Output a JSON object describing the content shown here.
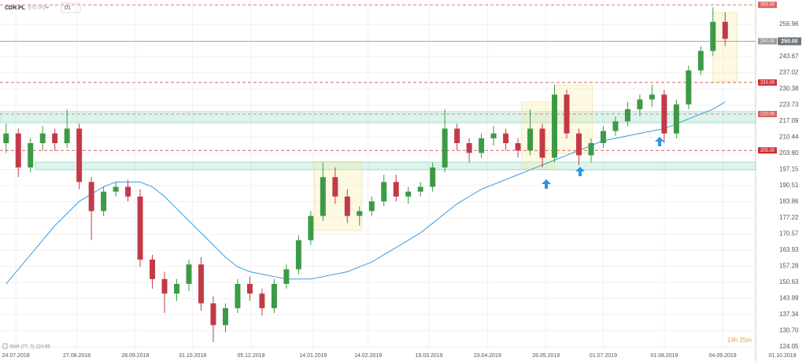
{
  "header": {
    "symbol": "CDR.PL",
    "source": "DTC CFD",
    "interval": "D1"
  },
  "indicator": {
    "label": "SMA (77, 0) 224.95"
  },
  "countdown": "14h 25m",
  "chart_data": {
    "type": "candlestick",
    "up_color": "#3c9a46",
    "down_color": "#c23a47",
    "sma_color": "#3a9be0",
    "xlim": [
      0,
      62
    ],
    "xticks": [
      {
        "value": 1.3,
        "label": "24.07.2018"
      },
      {
        "value": 6.3,
        "label": "27.08.2018"
      },
      {
        "value": 11.1,
        "label": "28.09.2018"
      },
      {
        "value": 15.8,
        "label": "31.10.2018"
      },
      {
        "value": 20.6,
        "label": "05.12.2018"
      },
      {
        "value": 25.7,
        "label": "14.01.2019"
      },
      {
        "value": 30.2,
        "label": "14.02.2019"
      },
      {
        "value": 35.2,
        "label": "19.03.2019"
      },
      {
        "value": 40,
        "label": "23.04.2019"
      },
      {
        "value": 44.8,
        "label": "28.05.2019"
      },
      {
        "value": 49.5,
        "label": "01.07.2019"
      },
      {
        "value": 54.5,
        "label": "01.08.2019"
      },
      {
        "value": 59.3,
        "label": "04.09.2019"
      },
      {
        "value": 64.2,
        "label": "01.10.2019"
      }
    ],
    "ylim": [
      122.75,
      267
    ],
    "yticks": [
      256.96,
      243.67,
      237.02,
      230.38,
      223.73,
      217.09,
      210.44,
      {
        "value": 203.8,
        "label": "203.80"
      },
      197.15,
      190.51,
      183.86,
      177.22,
      170.57,
      163.93,
      157.28,
      150.63,
      143.99,
      137.34,
      {
        "value": 130.7,
        "label": "130.70"
      },
      124.05
    ],
    "grid": true,
    "current_price": {
      "value": 250,
      "label": "250.00"
    },
    "levels": [
      {
        "value": 265,
        "label": "265.00",
        "color": "#e06060"
      },
      {
        "value": 250,
        "label": "250.00",
        "color": "#999999"
      },
      {
        "value": 233,
        "label": "233.00",
        "color": "#d03030"
      },
      {
        "value": 220,
        "label": "220.00",
        "color": "#e06060"
      },
      {
        "value": 205,
        "label": "205.00",
        "color": "#d03030"
      }
    ],
    "zones": [
      {
        "x": [
          0,
          62
        ],
        "y": [
          216.4,
          221
        ]
      },
      {
        "x": [
          2.9,
          62
        ],
        "y": [
          197,
          200.2
        ]
      }
    ],
    "boxes": [
      {
        "x": [
          25.8,
          29.7
        ],
        "y": [
          172,
          200.5
        ]
      },
      {
        "x": [
          42.8,
          45.5
        ],
        "y": [
          197.3,
          224.9
        ]
      },
      {
        "x": [
          45.5,
          48.6
        ],
        "y": [
          203.8,
          232
        ]
      },
      {
        "x": [
          58.5,
          60.5
        ],
        "y": [
          233.3,
          261.8
        ]
      }
    ],
    "open": [
      208,
      212,
      198,
      208,
      212,
      208,
      214,
      192,
      180,
      188,
      190,
      186,
      160,
      152,
      146,
      150,
      158,
      142,
      133,
      140,
      150,
      146,
      140,
      150,
      156,
      168,
      178,
      194,
      186,
      178,
      180,
      184,
      192,
      186,
      188,
      190,
      198,
      214,
      208,
      204,
      210,
      212,
      208,
      205,
      214,
      202,
      228,
      212,
      203,
      208,
      213,
      217,
      222,
      226,
      228,
      212,
      224,
      238,
      246,
      258
    ],
    "high": [
      216,
      214,
      210,
      215,
      214,
      222,
      216,
      194,
      190,
      192,
      193,
      189,
      162,
      155,
      152,
      160,
      161,
      145,
      142,
      152,
      153,
      148,
      152,
      158,
      170,
      180,
      200,
      198,
      189,
      182,
      186,
      195,
      195,
      190,
      192,
      200,
      222,
      216,
      210,
      212,
      215,
      214,
      210,
      222,
      216,
      232,
      230,
      214,
      210,
      215,
      219,
      225,
      228,
      232,
      230,
      226,
      240,
      248,
      264,
      262
    ],
    "low": [
      204,
      194,
      196,
      205,
      205,
      206,
      189,
      168,
      178,
      186,
      184,
      157,
      148,
      138,
      143,
      147,
      139,
      126,
      130,
      138,
      143,
      137,
      138,
      148,
      154,
      166,
      176,
      183,
      175,
      174,
      178,
      182,
      184,
      183,
      186,
      188,
      196,
      205,
      200,
      202,
      207,
      205,
      202,
      203,
      198,
      200,
      210,
      199,
      200,
      206,
      211,
      215,
      219,
      223,
      208,
      210,
      222,
      236,
      244,
      248
    ],
    "close": [
      212,
      198,
      208,
      212,
      208,
      214,
      192,
      180,
      188,
      190,
      186,
      160,
      152,
      146,
      150,
      158,
      142,
      133,
      140,
      150,
      146,
      140,
      150,
      156,
      168,
      178,
      194,
      186,
      178,
      180,
      184,
      192,
      186,
      188,
      190,
      198,
      214,
      208,
      204,
      210,
      212,
      208,
      205,
      214,
      202,
      228,
      212,
      203,
      208,
      213,
      217,
      222,
      226,
      228,
      212,
      224,
      238,
      246,
      258,
      251
    ],
    "sma": [
      150,
      156,
      162,
      168,
      174,
      179,
      184,
      187,
      190,
      192,
      192,
      192,
      190,
      186,
      181,
      176,
      171,
      166,
      161,
      157,
      155,
      154,
      153,
      152,
      152,
      152,
      153,
      154,
      155,
      157,
      159,
      162,
      165,
      168,
      171,
      175,
      179,
      183,
      186,
      189,
      191,
      193,
      195,
      197,
      199,
      201,
      203,
      205,
      207,
      209,
      210,
      211,
      212,
      213,
      214,
      216,
      218,
      220,
      222,
      225
    ]
  }
}
